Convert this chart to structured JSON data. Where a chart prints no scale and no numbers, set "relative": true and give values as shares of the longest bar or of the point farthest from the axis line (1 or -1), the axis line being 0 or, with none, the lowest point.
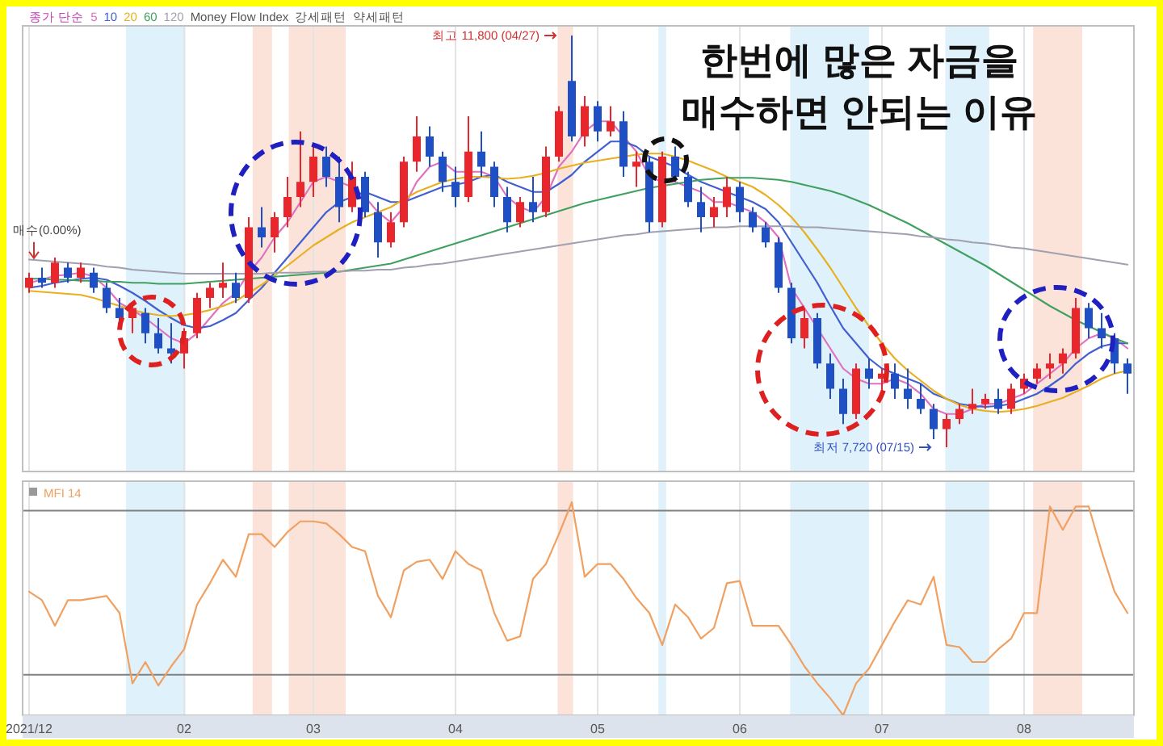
{
  "chart_data": [
    {
      "type": "candlestick",
      "title": "한번에 많은 자금을 매수하면 안되는 이유",
      "legend_title": "종가 단순",
      "legend": "top left",
      "grid": "x",
      "tick_labels": false,
      "categories": [
        "2021/12",
        null,
        null,
        null,
        null,
        null,
        null,
        null,
        null,
        null,
        null,
        null,
        "02",
        null,
        null,
        null,
        null,
        null,
        null,
        null,
        null,
        null,
        "03",
        null,
        null,
        null,
        null,
        null,
        null,
        null,
        null,
        null,
        null,
        "04",
        null,
        null,
        null,
        null,
        null,
        null,
        null,
        null,
        null,
        null,
        "05",
        null,
        null,
        null,
        null,
        null,
        null,
        null,
        null,
        null,
        null,
        "06",
        null,
        null,
        null,
        null,
        null,
        null,
        null,
        null,
        null,
        null,
        "07",
        null,
        null,
        null,
        null,
        null,
        null,
        null,
        null,
        null,
        null,
        "08",
        null,
        null,
        null,
        null,
        null,
        null,
        null,
        null
      ],
      "colors": [
        "#e8262b",
        "#1f4fc4",
        "#e8262b",
        "#1f4fc4",
        "#e8262b",
        "#1f4fc4",
        "#1f4fc4",
        "#1f4fc4",
        "#e8262b",
        "#1f4fc4",
        "#1f4fc4",
        "#1f4fc4",
        "#e8262b",
        "#e8262b",
        "#e8262b",
        "#e8262b",
        "#1f4fc4",
        "#e8262b",
        "#1f4fc4",
        "#e8262b",
        "#e8262b",
        "#e8262b",
        "#e8262b",
        "#1f4fc4",
        "#1f4fc4",
        "#e8262b",
        "#1f4fc4",
        "#1f4fc4",
        "#e8262b",
        "#e8262b",
        "#e8262b",
        "#1f4fc4",
        "#1f4fc4",
        "#1f4fc4",
        "#e8262b",
        "#1f4fc4",
        "#1f4fc4",
        "#1f4fc4",
        "#e8262b",
        "#1f4fc4",
        "#e8262b",
        "#e8262b",
        "#1f4fc4",
        "#e8262b",
        "#1f4fc4",
        "#e8262b",
        "#1f4fc4",
        "#e8262b",
        "#1f4fc4",
        "#e8262b",
        "#1f4fc4",
        "#1f4fc4",
        "#1f4fc4",
        "#e8262b",
        "#e8262b",
        "#1f4fc4",
        "#1f4fc4",
        "#1f4fc4",
        "#1f4fc4",
        "#1f4fc4",
        "#e8262b",
        "#1f4fc4",
        "#1f4fc4",
        "#1f4fc4",
        "#e8262b",
        "#1f4fc4",
        "#e8262b",
        "#1f4fc4",
        "#1f4fc4",
        "#1f4fc4",
        "#1f4fc4",
        "#e8262b",
        "#e8262b",
        "#e8262b",
        "#e8262b",
        "#1f4fc4",
        "#e8262b",
        "#e8262b",
        "#e8262b",
        "#e8262b",
        "#e8262b",
        "#e8262b",
        "#1f4fc4",
        "#1f4fc4",
        "#1f4fc4",
        "#1f4fc4"
      ],
      "ohlc": [
        [
          9300,
          9450,
          9250,
          9400
        ],
        [
          9400,
          9500,
          9300,
          9350
        ],
        [
          9350,
          9600,
          9300,
          9550
        ],
        [
          9500,
          9550,
          9350,
          9400
        ],
        [
          9400,
          9550,
          9350,
          9500
        ],
        [
          9450,
          9500,
          9250,
          9300
        ],
        [
          9300,
          9350,
          9050,
          9100
        ],
        [
          9100,
          9200,
          8950,
          9000
        ],
        [
          9000,
          9150,
          8850,
          9100
        ],
        [
          9050,
          9100,
          8750,
          8850
        ],
        [
          8850,
          9000,
          8650,
          8700
        ],
        [
          8700,
          8950,
          8550,
          8650
        ],
        [
          8650,
          8900,
          8500,
          8800
        ],
        [
          8850,
          9250,
          8800,
          9200
        ],
        [
          9200,
          9350,
          9100,
          9300
        ],
        [
          9300,
          9550,
          9200,
          9350
        ],
        [
          9350,
          9450,
          9150,
          9200
        ],
        [
          9200,
          10000,
          9150,
          9900
        ],
        [
          9900,
          10100,
          9700,
          9800
        ],
        [
          9800,
          10050,
          9650,
          10000
        ],
        [
          10000,
          10400,
          9900,
          10200
        ],
        [
          10200,
          10850,
          10100,
          10350
        ],
        [
          10350,
          10700,
          10200,
          10600
        ],
        [
          10600,
          10700,
          10300,
          10400
        ],
        [
          10400,
          10600,
          9950,
          10100
        ],
        [
          10100,
          10550,
          10050,
          10400
        ],
        [
          10400,
          10450,
          10000,
          10050
        ],
        [
          10050,
          10150,
          9600,
          9750
        ],
        [
          9750,
          10050,
          9700,
          9950
        ],
        [
          9950,
          10600,
          9900,
          10550
        ],
        [
          10550,
          11000,
          10450,
          10800
        ],
        [
          10800,
          10900,
          10500,
          10600
        ],
        [
          10600,
          10650,
          10250,
          10350
        ],
        [
          10350,
          10500,
          10100,
          10200
        ],
        [
          10200,
          11000,
          10150,
          10650
        ],
        [
          10650,
          10850,
          10400,
          10500
        ],
        [
          10500,
          10550,
          10100,
          10200
        ],
        [
          10200,
          10300,
          9850,
          9950
        ],
        [
          9950,
          10200,
          9900,
          10150
        ],
        [
          10150,
          10400,
          9950,
          10050
        ],
        [
          10050,
          10700,
          10000,
          10600
        ],
        [
          10600,
          11100,
          10550,
          11050
        ],
        [
          11350,
          11800,
          10750,
          10800
        ],
        [
          10800,
          11200,
          10700,
          11100
        ],
        [
          11100,
          11150,
          10750,
          10850
        ],
        [
          10850,
          11100,
          10800,
          10950
        ],
        [
          10950,
          11050,
          10400,
          10500
        ],
        [
          10500,
          10650,
          10300,
          10550
        ],
        [
          10550,
          10600,
          9850,
          9950
        ],
        [
          9950,
          10650,
          9900,
          10600
        ],
        [
          10600,
          10700,
          10350,
          10400
        ],
        [
          10400,
          10450,
          10100,
          10150
        ],
        [
          10150,
          10300,
          9850,
          10000
        ],
        [
          10000,
          10200,
          9900,
          10100
        ],
        [
          10100,
          10400,
          10000,
          10300
        ],
        [
          10300,
          10350,
          9950,
          10050
        ],
        [
          10050,
          10100,
          9850,
          9900
        ],
        [
          9900,
          9950,
          9700,
          9750
        ],
        [
          9750,
          9800,
          9250,
          9300
        ],
        [
          9300,
          9350,
          8750,
          8800
        ],
        [
          8800,
          9100,
          8700,
          9000
        ],
        [
          9000,
          9050,
          8500,
          8550
        ],
        [
          8550,
          8650,
          8200,
          8300
        ],
        [
          8300,
          8400,
          7950,
          8050
        ],
        [
          8050,
          8550,
          8000,
          8500
        ],
        [
          8500,
          8600,
          8300,
          8400
        ],
        [
          8400,
          8500,
          8250,
          8450
        ],
        [
          8450,
          8550,
          8200,
          8300
        ],
        [
          8300,
          8500,
          8100,
          8200
        ],
        [
          8200,
          8350,
          8050,
          8100
        ],
        [
          8100,
          8150,
          7800,
          7900
        ],
        [
          7900,
          8050,
          7720,
          8000
        ],
        [
          8000,
          8150,
          7950,
          8100
        ],
        [
          8100,
          8300,
          8050,
          8150
        ],
        [
          8150,
          8250,
          8100,
          8200
        ],
        [
          8200,
          8300,
          8050,
          8100
        ],
        [
          8100,
          8350,
          8050,
          8300
        ],
        [
          8300,
          8450,
          8250,
          8400
        ],
        [
          8400,
          8550,
          8350,
          8500
        ],
        [
          8500,
          8650,
          8400,
          8550
        ],
        [
          8550,
          8700,
          8450,
          8650
        ],
        [
          8650,
          9200,
          8600,
          9100
        ],
        [
          9100,
          9150,
          8800,
          8900
        ],
        [
          8900,
          9050,
          8700,
          8800
        ],
        [
          8800,
          8850,
          8450,
          8550
        ],
        [
          8550,
          8600,
          8250,
          8450
        ]
      ],
      "series": [
        {
          "name": "5",
          "type": "line",
          "color": "#e070c0",
          "values": [
            9350,
            9380,
            9420,
            9430,
            9450,
            9410,
            9300,
            9150,
            9080,
            9000,
            8900,
            8800,
            8750,
            8850,
            9000,
            9150,
            9250,
            9450,
            9600,
            9800,
            9950,
            10150,
            10350,
            10400,
            10350,
            10300,
            10200,
            10050,
            9950,
            10100,
            10350,
            10500,
            10550,
            10450,
            10450,
            10450,
            10400,
            10200,
            10100,
            10050,
            10200,
            10500,
            10650,
            10850,
            10950,
            10950,
            10800,
            10650,
            10400,
            10350,
            10350,
            10300,
            10250,
            10150,
            10150,
            10100,
            10050,
            9950,
            9800,
            9300,
            9100,
            8900,
            8700,
            8500,
            8400,
            8350,
            8350,
            8400,
            8350,
            8250,
            8100,
            8050,
            8050,
            8100,
            8150,
            8150,
            8200,
            8250,
            8350,
            8450,
            8550,
            8700,
            8800,
            8850,
            8800,
            8700
          ]
        },
        {
          "name": "10",
          "type": "line",
          "color": "#4060d0",
          "values": [
            9300,
            9320,
            9350,
            9370,
            9390,
            9400,
            9380,
            9320,
            9250,
            9170,
            9080,
            9000,
            8930,
            8900,
            8920,
            8980,
            9050,
            9180,
            9300,
            9450,
            9600,
            9750,
            9900,
            10050,
            10150,
            10200,
            10250,
            10200,
            10150,
            10150,
            10200,
            10250,
            10300,
            10320,
            10350,
            10400,
            10420,
            10350,
            10300,
            10250,
            10250,
            10330,
            10420,
            10550,
            10650,
            10750,
            10750,
            10700,
            10600,
            10550,
            10500,
            10420,
            10350,
            10300,
            10250,
            10200,
            10150,
            10080,
            9950,
            9750,
            9550,
            9350,
            9120,
            8900,
            8750,
            8600,
            8500,
            8450,
            8400,
            8350,
            8250,
            8200,
            8150,
            8130,
            8120,
            8130,
            8150,
            8200,
            8250,
            8330,
            8420,
            8550,
            8650,
            8720,
            8750,
            8750
          ]
        },
        {
          "name": "20",
          "type": "line",
          "color": "#e8b020",
          "values": [
            9270,
            9260,
            9250,
            9240,
            9230,
            9200,
            9160,
            9120,
            9080,
            9050,
            9030,
            9020,
            9030,
            9050,
            9080,
            9120,
            9170,
            9250,
            9330,
            9420,
            9520,
            9620,
            9720,
            9800,
            9880,
            9950,
            10000,
            10050,
            10100,
            10180,
            10250,
            10300,
            10350,
            10380,
            10400,
            10400,
            10390,
            10380,
            10390,
            10410,
            10440,
            10480,
            10510,
            10540,
            10560,
            10580,
            10600,
            10620,
            10630,
            10630,
            10600,
            10560,
            10510,
            10460,
            10400,
            10350,
            10300,
            10220,
            10120,
            10000,
            9850,
            9680,
            9500,
            9300,
            9100,
            8920,
            8750,
            8600,
            8480,
            8380,
            8280,
            8200,
            8140,
            8100,
            8080,
            8070,
            8080,
            8100,
            8130,
            8170,
            8210,
            8270,
            8330,
            8400,
            8450,
            8480
          ]
        },
        {
          "name": "60",
          "type": "line",
          "color": "#40a060",
          "values": [
            9390,
            9390,
            9380,
            9380,
            9370,
            9370,
            9360,
            9360,
            9350,
            9350,
            9340,
            9340,
            9340,
            9350,
            9360,
            9370,
            9380,
            9390,
            9400,
            9410,
            9420,
            9430,
            9440,
            9450,
            9460,
            9480,
            9500,
            9520,
            9540,
            9580,
            9620,
            9660,
            9700,
            9740,
            9780,
            9820,
            9860,
            9900,
            9940,
            9980,
            10020,
            10060,
            10100,
            10140,
            10170,
            10200,
            10230,
            10260,
            10290,
            10310,
            10330,
            10350,
            10370,
            10380,
            10390,
            10390,
            10390,
            10380,
            10370,
            10350,
            10320,
            10290,
            10260,
            10220,
            10170,
            10120,
            10060,
            10000,
            9940,
            9870,
            9800,
            9730,
            9660,
            9590,
            9520,
            9440,
            9360,
            9280,
            9200,
            9120,
            9050,
            8980,
            8920,
            8860,
            8800,
            8750
          ]
        },
        {
          "name": "120",
          "type": "line",
          "color": "#a0a0b0",
          "values": [
            9580,
            9570,
            9560,
            9550,
            9540,
            9530,
            9510,
            9500,
            9480,
            9470,
            9460,
            9450,
            9440,
            9440,
            9440,
            9440,
            9440,
            9440,
            9440,
            9450,
            9450,
            9450,
            9460,
            9460,
            9460,
            9470,
            9470,
            9480,
            9480,
            9500,
            9510,
            9530,
            9540,
            9560,
            9580,
            9600,
            9620,
            9640,
            9660,
            9680,
            9700,
            9720,
            9740,
            9760,
            9780,
            9800,
            9820,
            9830,
            9850,
            9860,
            9870,
            9880,
            9890,
            9900,
            9900,
            9910,
            9910,
            9910,
            9910,
            9910,
            9900,
            9900,
            9890,
            9880,
            9870,
            9860,
            9850,
            9840,
            9830,
            9810,
            9800,
            9780,
            9770,
            9750,
            9740,
            9720,
            9700,
            9690,
            9670,
            9650,
            9630,
            9610,
            9590,
            9570,
            9550,
            9530
          ]
        }
      ],
      "annotations": [
        "Money Flow Index",
        "강세패턴",
        "약세패턴",
        "최고 11,800 (04/27)",
        "최저 7,720 (07/15)",
        "매수(0.00%)"
      ]
    },
    {
      "type": "line",
      "relative": true,
      "legend": "top left",
      "grid": "x",
      "categories": [
        "2021/12",
        null,
        null,
        null,
        null,
        null,
        null,
        null,
        null,
        null,
        null,
        null,
        "02",
        null,
        null,
        null,
        null,
        null,
        null,
        null,
        null,
        null,
        "03",
        null,
        null,
        null,
        null,
        null,
        null,
        null,
        null,
        null,
        null,
        "04",
        null,
        null,
        null,
        null,
        null,
        null,
        null,
        null,
        null,
        null,
        "05",
        null,
        null,
        null,
        null,
        null,
        null,
        null,
        null,
        null,
        null,
        "06",
        null,
        null,
        null,
        null,
        null,
        null,
        null,
        null,
        null,
        null,
        "07",
        null,
        null,
        null,
        null,
        null,
        null,
        null,
        null,
        null,
        null,
        "08",
        null,
        null,
        null,
        null,
        null,
        null,
        null,
        null
      ],
      "series": [
        {
          "name": "MFI 14",
          "color": "#f0a060",
          "values": [
            0.58,
            0.54,
            0.42,
            0.54,
            0.54,
            0.55,
            0.56,
            0.48,
            0.15,
            0.25,
            0.14,
            0.23,
            0.31,
            0.52,
            0.62,
            0.73,
            0.65,
            0.85,
            0.85,
            0.79,
            0.86,
            0.91,
            0.91,
            0.9,
            0.85,
            0.79,
            0.77,
            0.56,
            0.46,
            0.68,
            0.72,
            0.73,
            0.64,
            0.77,
            0.71,
            0.68,
            0.48,
            0.35,
            0.37,
            0.64,
            0.71,
            0.85,
            1,
            0.65,
            0.71,
            0.71,
            0.64,
            0.55,
            0.48,
            0.33,
            0.52,
            0.46,
            0.36,
            0.41,
            0.62,
            0.63,
            0.42,
            0.42,
            0.42,
            0.33,
            0.23,
            0.15,
            0.08,
            0,
            0.15,
            0.22,
            0.33,
            0.44,
            0.54,
            0.52,
            0.65,
            0.33,
            0.32,
            0.25,
            0.25,
            0.31,
            0.36,
            0.48,
            0.48,
            0.98,
            0.87,
            0.98,
            0.98,
            0.77,
            0.58,
            0.48
          ]
        }
      ],
      "ref_lines": [
        {
          "axis": "y",
          "value": 0.96,
          "color": "#808080"
        },
        {
          "axis": "y",
          "value": 0.19,
          "color": "#808080"
        }
      ]
    }
  ]
}
